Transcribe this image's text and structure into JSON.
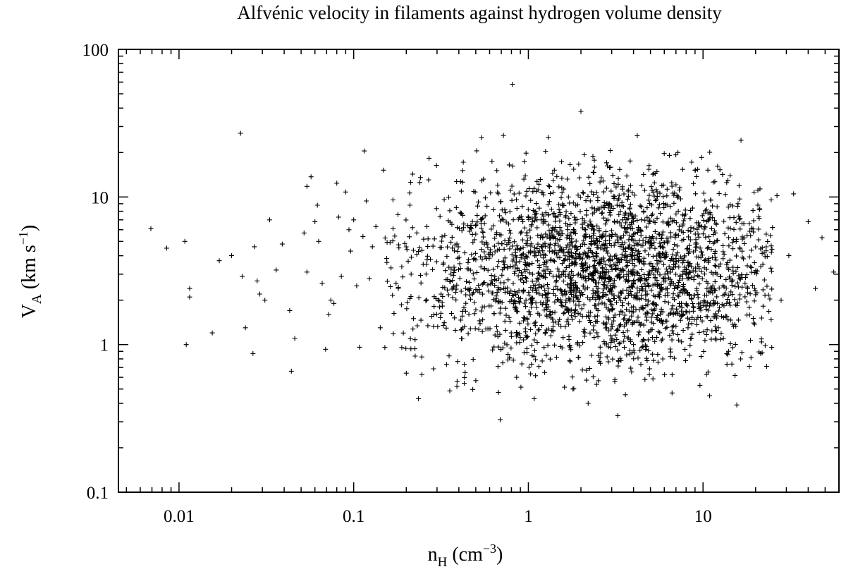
{
  "chart_data": {
    "type": "scatter",
    "title": "Alfvénic velocity in filaments against hydrogen volume density",
    "xlabel": {
      "base": "n",
      "sub": "H",
      "unit_prefix": " (cm",
      "sup": "−3",
      "unit_suffix": ")"
    },
    "ylabel": {
      "base": "V",
      "sub": "A",
      "unit_prefix": " (km s",
      "sup": "−1",
      "unit_suffix": ")"
    },
    "x_scale": "log",
    "y_scale": "log",
    "xlim": [
      0.0045,
      60
    ],
    "ylim": [
      0.1,
      100
    ],
    "x_ticks": [
      0.01,
      0.1,
      1,
      10
    ],
    "x_tick_labels": [
      "0.01",
      "0.1",
      "1",
      "10"
    ],
    "y_ticks": [
      0.1,
      1,
      10,
      100
    ],
    "y_tick_labels": [
      "0.1",
      "1",
      "10",
      "100"
    ],
    "grid": false,
    "legend": "none",
    "marker": "plus",
    "marker_color": "#000000",
    "series": [
      {
        "points": [
          [
            0.0069,
            6.1
          ],
          [
            0.0085,
            4.5
          ],
          [
            0.0108,
            5.0
          ],
          [
            0.011,
            1.0
          ],
          [
            0.0115,
            2.4
          ],
          [
            0.0115,
            2.1
          ],
          [
            0.0155,
            1.2
          ],
          [
            0.017,
            3.7
          ],
          [
            0.02,
            4.0
          ],
          [
            0.0225,
            27
          ],
          [
            0.023,
            2.9
          ],
          [
            0.024,
            1.3
          ],
          [
            0.0265,
            0.87
          ],
          [
            0.027,
            4.6
          ],
          [
            0.028,
            2.7
          ],
          [
            0.029,
            2.2
          ],
          [
            0.031,
            2.0
          ],
          [
            0.033,
            7.0
          ],
          [
            0.036,
            3.2
          ],
          [
            0.039,
            4.8
          ],
          [
            0.043,
            1.7
          ],
          [
            0.044,
            0.66
          ],
          [
            0.046,
            1.1
          ],
          [
            0.052,
            5.7
          ],
          [
            0.054,
            11.8
          ],
          [
            0.054,
            3.1
          ],
          [
            0.057,
            13.7
          ],
          [
            0.06,
            6.8
          ],
          [
            0.062,
            8.8
          ],
          [
            0.063,
            5.0
          ],
          [
            0.066,
            2.6
          ],
          [
            0.069,
            0.93
          ],
          [
            0.072,
            1.6
          ],
          [
            0.074,
            2.0
          ],
          [
            0.077,
            1.9
          ],
          [
            0.08,
            12.4
          ],
          [
            0.082,
            7.3
          ],
          [
            0.085,
            2.9
          ],
          [
            0.09,
            10.8
          ],
          [
            0.094,
            6.0
          ],
          [
            0.096,
            4.3
          ],
          [
            0.1,
            7.0
          ],
          [
            0.104,
            2.5
          ],
          [
            0.108,
            0.96
          ],
          [
            0.113,
            5.4
          ],
          [
            0.115,
            20.5
          ],
          [
            0.118,
            9.4
          ],
          [
            0.123,
            2.8
          ],
          [
            0.128,
            4.6
          ],
          [
            0.134,
            6.3
          ],
          [
            0.142,
            1.3
          ],
          [
            0.148,
            15.2
          ],
          [
            0.155,
            3.6
          ],
          [
            0.168,
            6.1
          ],
          [
            0.18,
            2.4
          ],
          [
            0.2,
            0.64
          ],
          [
            0.21,
            8.8
          ],
          [
            0.22,
            1.5
          ],
          [
            0.235,
            0.43
          ],
          [
            0.25,
            3.5
          ],
          [
            0.27,
            18.3
          ],
          [
            0.29,
            5.2
          ],
          [
            0.31,
            1.8
          ],
          [
            0.33,
            9.6
          ],
          [
            0.36,
            3.0
          ],
          [
            0.39,
            0.52
          ],
          [
            0.42,
            12.6
          ],
          [
            0.45,
            6.4
          ],
          [
            0.48,
            2.2
          ],
          [
            0.5,
            0.57
          ],
          [
            0.54,
            25.2
          ],
          [
            0.58,
            4.8
          ],
          [
            0.63,
            8.2
          ],
          [
            0.66,
            15.1
          ],
          [
            0.69,
            0.31
          ],
          [
            0.72,
            26.1
          ],
          [
            0.76,
            3.3
          ],
          [
            0.81,
            58
          ],
          [
            0.86,
            1.2
          ],
          [
            0.91,
            7.4
          ],
          [
            0.97,
            19.8
          ],
          [
            1.03,
            4.3
          ],
          [
            1.08,
            0.43
          ],
          [
            1.15,
            12.2
          ],
          [
            1.23,
            2.5
          ],
          [
            1.3,
            25.3
          ],
          [
            1.38,
            6.2
          ],
          [
            1.45,
            0.82
          ],
          [
            1.55,
            17.3
          ],
          [
            1.63,
            3.8
          ],
          [
            1.72,
            9.1
          ],
          [
            1.8,
            0.5
          ],
          [
            1.9,
            2.1
          ],
          [
            2.0,
            38
          ],
          [
            2.1,
            5.5
          ],
          [
            2.2,
            0.4
          ],
          [
            2.35,
            14.7
          ],
          [
            2.5,
            3.1
          ],
          [
            2.65,
            7.8
          ],
          [
            2.8,
            1.4
          ],
          [
            2.95,
            20.6
          ],
          [
            3.1,
            4.7
          ],
          [
            3.25,
            0.33
          ],
          [
            3.45,
            11.3
          ],
          [
            3.6,
            2.7
          ],
          [
            3.8,
            8.3
          ],
          [
            4.0,
            1.0
          ],
          [
            4.2,
            26.0
          ],
          [
            4.4,
            5.9
          ],
          [
            4.65,
            0.58
          ],
          [
            4.9,
            15.4
          ],
          [
            5.15,
            3.4
          ],
          [
            5.4,
            9.6
          ],
          [
            5.7,
            1.6
          ],
          [
            6.0,
            19.7
          ],
          [
            6.3,
            6.7
          ],
          [
            6.65,
            0.47
          ],
          [
            7.0,
            12.1
          ],
          [
            7.4,
            2.9
          ],
          [
            7.8,
            7.1
          ],
          [
            8.2,
            1.3
          ],
          [
            8.6,
            17.2
          ],
          [
            9.1,
            4.9
          ],
          [
            9.6,
            0.53
          ],
          [
            10.1,
            10.6
          ],
          [
            10.7,
            3.6
          ],
          [
            11.2,
            6.1
          ],
          [
            11.8,
            1.1
          ],
          [
            12.5,
            15.3
          ],
          [
            13.2,
            4.1
          ],
          [
            14.0,
            0.9
          ],
          [
            14.8,
            8.7
          ],
          [
            15.6,
            0.39
          ],
          [
            16.5,
            24.2
          ],
          [
            17.4,
            2.6
          ],
          [
            18.4,
            6.6
          ],
          [
            19.5,
            1.4
          ],
          [
            20.6,
            11.1
          ],
          [
            21.8,
            0.88
          ],
          [
            23.0,
            5.6
          ],
          [
            26.5,
            10.2
          ],
          [
            28.0,
            2.0
          ],
          [
            31.0,
            4.0
          ],
          [
            33.0,
            10.5
          ],
          [
            40.0,
            6.8
          ],
          [
            44.0,
            2.4
          ],
          [
            48.0,
            5.3
          ],
          [
            56.0,
            3.1
          ]
        ]
      }
    ],
    "dense_cloud": {
      "count": 2600,
      "center_x": 2.8,
      "center_y": 3.2,
      "spread_x_decades": 0.58,
      "spread_y_decades": 0.33,
      "x_range": [
        0.15,
        25
      ],
      "y_range": [
        0.45,
        21
      ]
    }
  }
}
